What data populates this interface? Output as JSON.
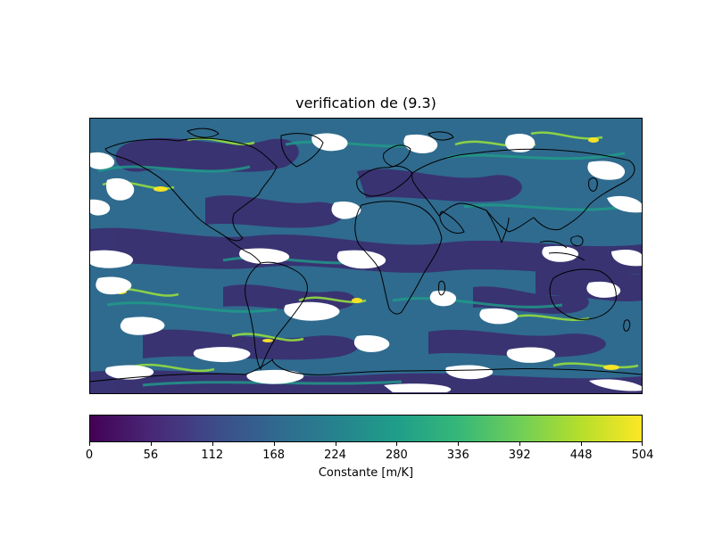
{
  "figure": {
    "title": "verification de (9.3)"
  },
  "colorbar": {
    "label": "Constante [m/K]",
    "ticks": [
      "0",
      "56",
      "112",
      "168",
      "224",
      "280",
      "336",
      "392",
      "448",
      "504"
    ],
    "range": [
      0,
      504
    ],
    "colormap": "viridis",
    "colors": [
      "#440154",
      "#482878",
      "#3e4a89",
      "#31688e",
      "#26828e",
      "#1f9e89",
      "#35b779",
      "#6ece58",
      "#b5de2b",
      "#fde725"
    ]
  },
  "map": {
    "projection": "PlateCarree",
    "background_color": "#31688e",
    "masked_color": "#ffffff",
    "coastline_color": "#000000"
  }
}
